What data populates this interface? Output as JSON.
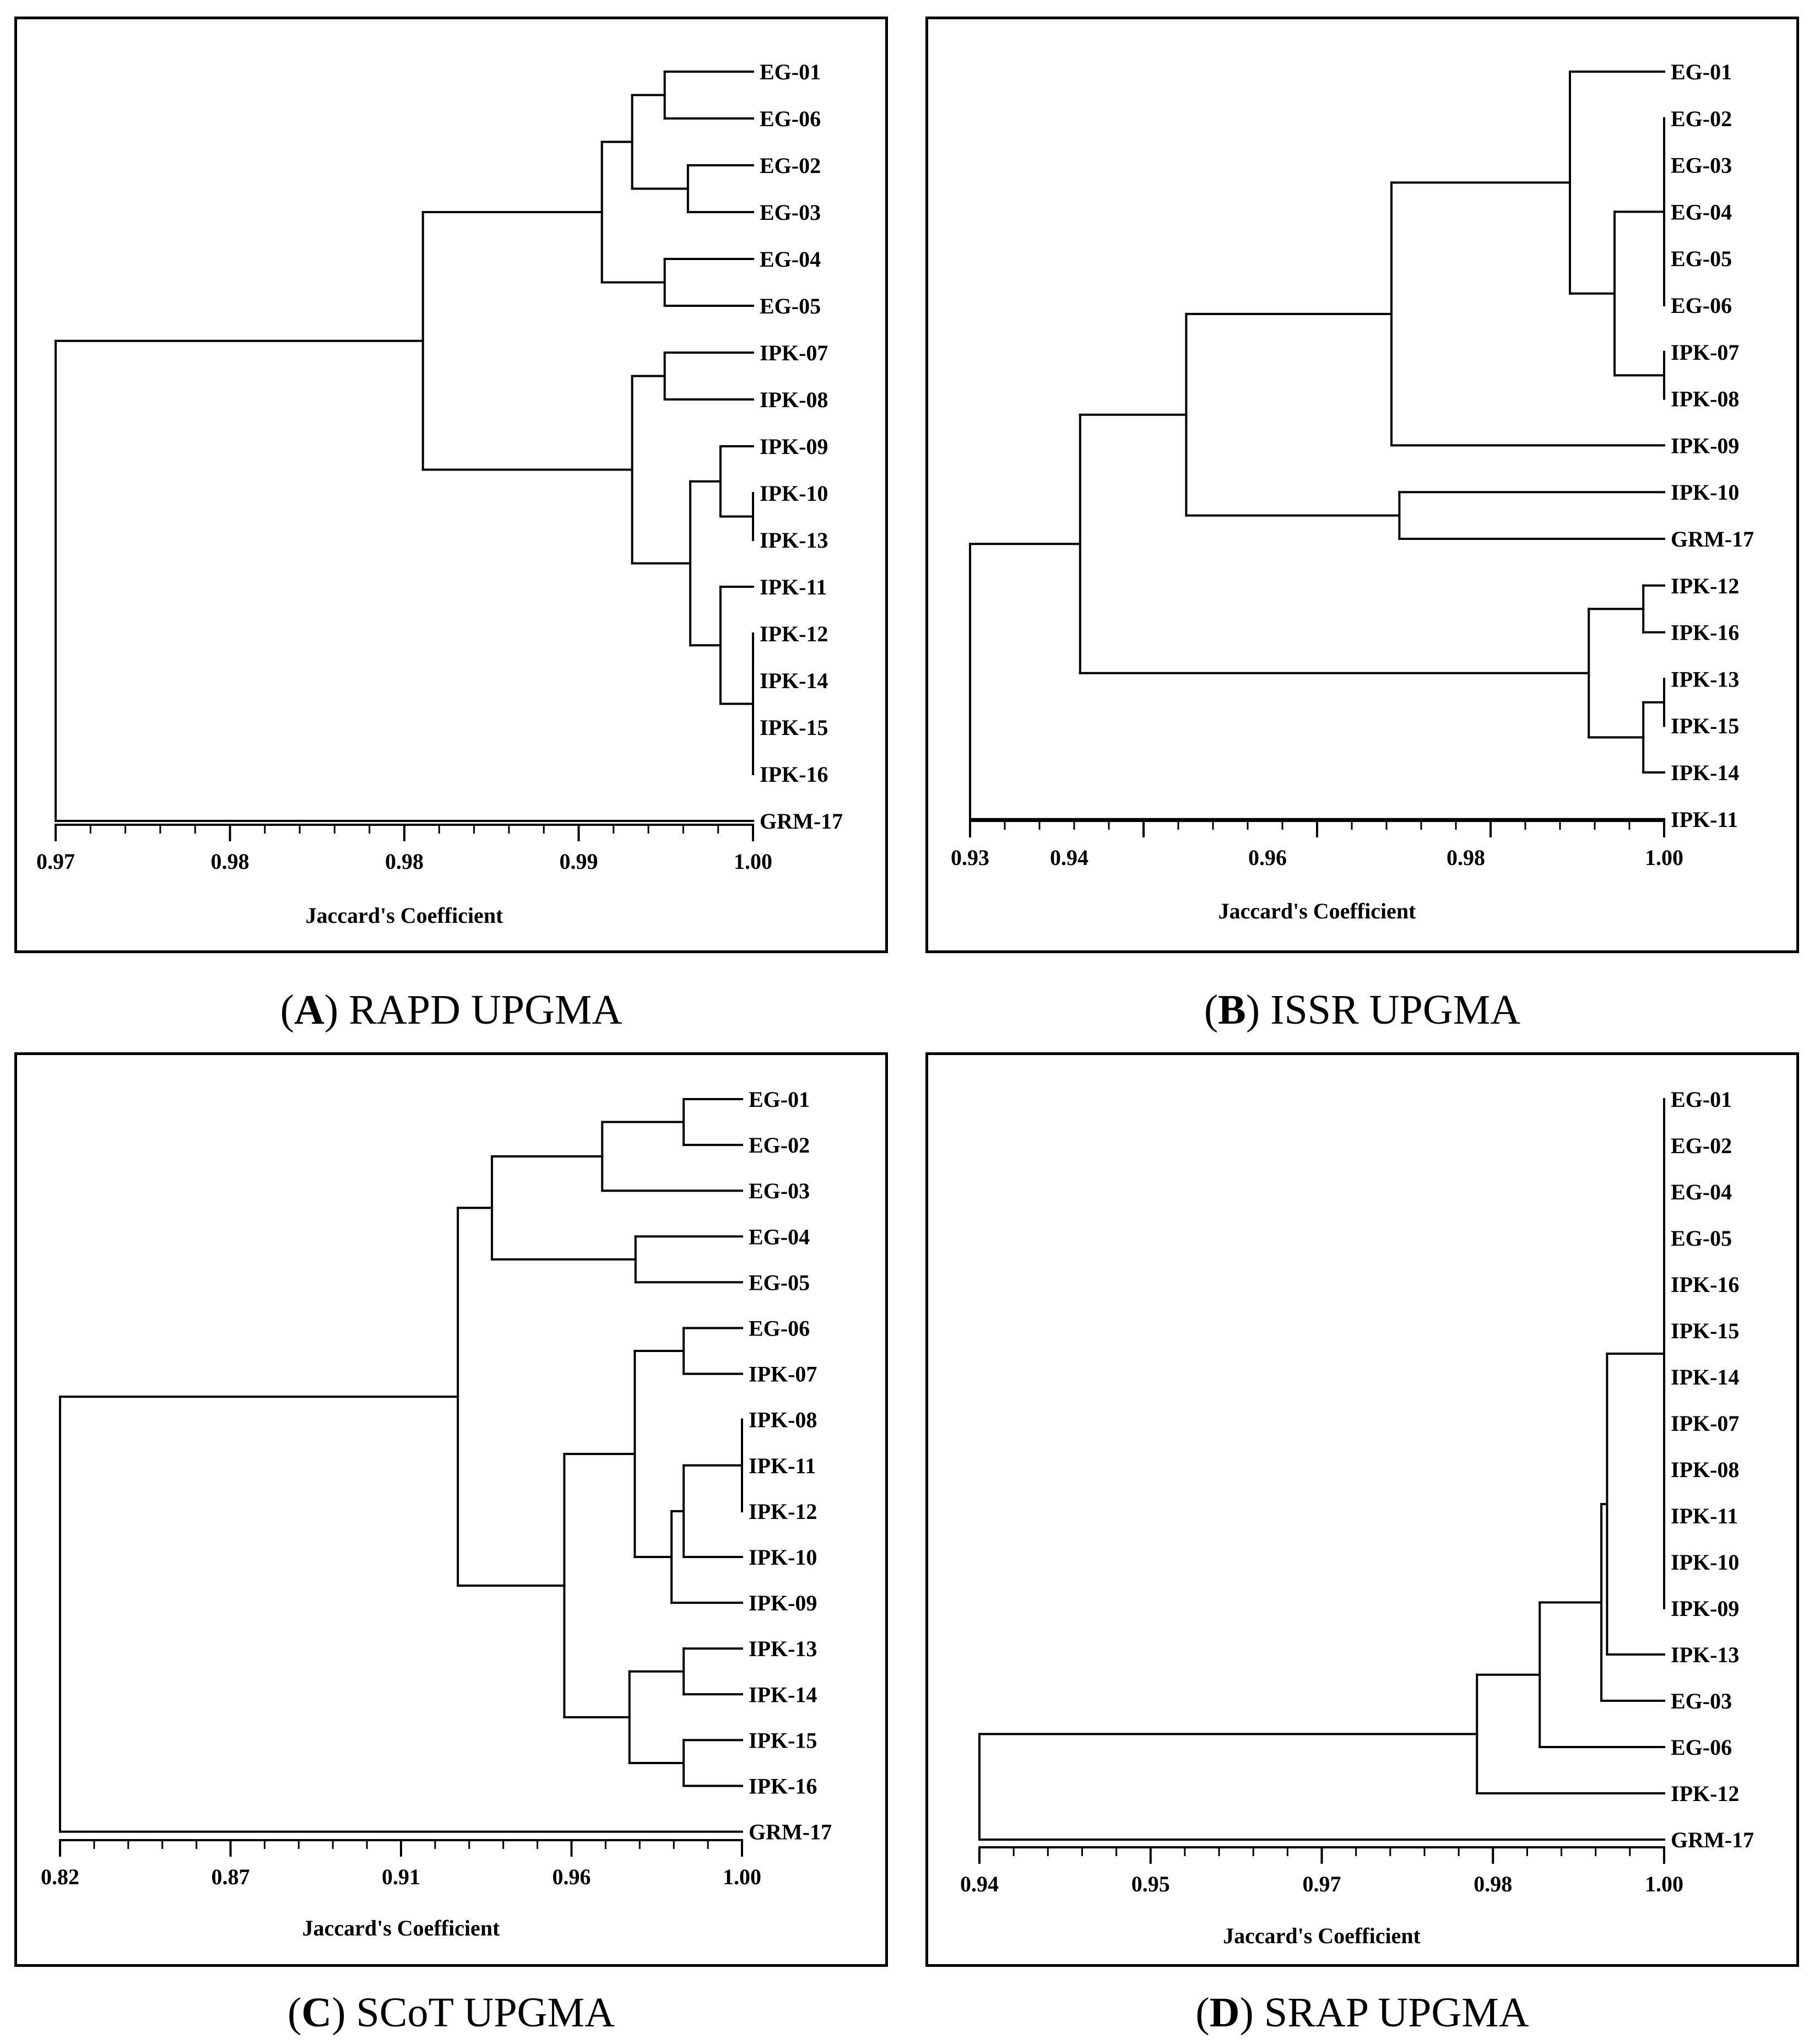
{
  "chart_data": [
    {
      "type": "dendrogram",
      "panel": "A",
      "caption_letter": "A",
      "caption_text": "RAPD UPGMA",
      "xlabel": "Jaccard's Coefficient",
      "xlim": [
        0.97,
        1.0
      ],
      "ticks": [
        {
          "value": 0.97,
          "label": "0.97"
        },
        {
          "value": 0.9775,
          "label": "0.98"
        },
        {
          "value": 0.985,
          "label": "0.98"
        },
        {
          "value": 0.9925,
          "label": "0.99"
        },
        {
          "value": 1.0,
          "label": "1.00"
        }
      ],
      "leaves": [
        "EG-01",
        "EG-06",
        "EG-02",
        "EG-03",
        "EG-04",
        "EG-05",
        "IPK-07",
        "IPK-08",
        "IPK-09",
        "IPK-10",
        "IPK-13",
        "IPK-11",
        "IPK-12",
        "IPK-14",
        "IPK-15",
        "IPK-16",
        "GRM-17"
      ],
      "tree": {
        "h": 0.97,
        "c": [
          {
            "h": 0.9858,
            "c": [
              {
                "h": 0.9935,
                "c": [
                  {
                    "h": 0.9948,
                    "c": [
                      {
                        "h": 0.9962,
                        "c": [
                          {
                            "leaf": "EG-01"
                          },
                          {
                            "leaf": "EG-06"
                          }
                        ]
                      },
                      {
                        "h": 0.9972,
                        "c": [
                          {
                            "leaf": "EG-02"
                          },
                          {
                            "leaf": "EG-03"
                          }
                        ]
                      }
                    ]
                  },
                  {
                    "h": 0.9962,
                    "c": [
                      {
                        "leaf": "EG-04"
                      },
                      {
                        "leaf": "EG-05"
                      }
                    ]
                  }
                ]
              },
              {
                "h": 0.9948,
                "c": [
                  {
                    "h": 0.9962,
                    "c": [
                      {
                        "leaf": "IPK-07"
                      },
                      {
                        "leaf": "IPK-08"
                      }
                    ]
                  },
                  {
                    "h": 0.9973,
                    "c": [
                      {
                        "h": 0.9986,
                        "c": [
                          {
                            "leaf": "IPK-09"
                          },
                          {
                            "h": 1.0,
                            "c": [
                              {
                                "leaf": "IPK-10"
                              },
                              {
                                "leaf": "IPK-13"
                              }
                            ]
                          }
                        ]
                      },
                      {
                        "h": 0.9986,
                        "c": [
                          {
                            "leaf": "IPK-11"
                          },
                          {
                            "h": 1.0,
                            "c": [
                              {
                                "leaf": "IPK-12"
                              },
                              {
                                "leaf": "IPK-14"
                              },
                              {
                                "leaf": "IPK-15"
                              },
                              {
                                "leaf": "IPK-16"
                              }
                            ]
                          }
                        ]
                      }
                    ]
                  }
                ]
              }
            ]
          },
          {
            "leaf": "GRM-17"
          }
        ]
      }
    },
    {
      "type": "dendrogram",
      "panel": "B",
      "caption_letter": "B",
      "caption_text": "ISSR UPGMA",
      "xlabel": "Jaccard's Coefficient",
      "xlim": [
        0.93,
        1.0
      ],
      "ticks": [
        {
          "value": 0.93,
          "label": "0.93"
        },
        {
          "value": 0.94,
          "label": "0.94"
        },
        {
          "value": 0.96,
          "label": "0.96"
        },
        {
          "value": 0.98,
          "label": "0.98"
        },
        {
          "value": 1.0,
          "label": "1.00"
        }
      ],
      "leaves": [
        "EG-01",
        "EG-02",
        "EG-03",
        "EG-04",
        "EG-05",
        "EG-06",
        "IPK-07",
        "IPK-08",
        "IPK-09",
        "IPK-10",
        "GRM-17",
        "IPK-12",
        "IPK-16",
        "IPK-13",
        "IPK-15",
        "IPK-14",
        "IPK-11"
      ],
      "tree": {
        "h": 0.93,
        "c": [
          {
            "h": 0.9411,
            "c": [
              {
                "h": 0.9518,
                "c": [
                  {
                    "h": 0.9725,
                    "c": [
                      {
                        "h": 0.9905,
                        "c": [
                          {
                            "leaf": "EG-01"
                          },
                          {
                            "h": 0.995,
                            "c": [
                              {
                                "h": 1.0,
                                "c": [
                                  {
                                    "leaf": "EG-02"
                                  },
                                  {
                                    "leaf": "EG-03"
                                  },
                                  {
                                    "leaf": "EG-04"
                                  },
                                  {
                                    "leaf": "EG-05"
                                  },
                                  {
                                    "leaf": "EG-06"
                                  }
                                ]
                              },
                              {
                                "h": 1.0,
                                "c": [
                                  {
                                    "leaf": "IPK-07"
                                  },
                                  {
                                    "leaf": "IPK-08"
                                  }
                                ]
                              }
                            ]
                          }
                        ]
                      },
                      {
                        "leaf": "IPK-09"
                      }
                    ]
                  },
                  {
                    "h": 0.9733,
                    "c": [
                      {
                        "leaf": "IPK-10"
                      },
                      {
                        "leaf": "GRM-17"
                      }
                    ]
                  }
                ]
              },
              {
                "h": 0.9924,
                "c": [
                  {
                    "h": 0.9979,
                    "c": [
                      {
                        "leaf": "IPK-12"
                      },
                      {
                        "leaf": "IPK-16"
                      }
                    ]
                  },
                  {
                    "h": 0.9979,
                    "c": [
                      {
                        "h": 1.0,
                        "c": [
                          {
                            "leaf": "IPK-13"
                          },
                          {
                            "leaf": "IPK-15"
                          }
                        ]
                      },
                      {
                        "leaf": "IPK-14"
                      }
                    ]
                  }
                ]
              }
            ]
          },
          {
            "leaf": "IPK-11"
          }
        ]
      }
    },
    {
      "type": "dendrogram",
      "panel": "C",
      "caption_letter": "C",
      "caption_text": "SCoT UPGMA",
      "xlabel": "Jaccard's Coefficient",
      "xlim": [
        0.82,
        1.0
      ],
      "ticks": [
        {
          "value": 0.82,
          "label": "0.82"
        },
        {
          "value": 0.865,
          "label": "0.87"
        },
        {
          "value": 0.91,
          "label": "0.91"
        },
        {
          "value": 0.955,
          "label": "0.96"
        },
        {
          "value": 1.0,
          "label": "1.00"
        }
      ],
      "leaves": [
        "EG-01",
        "EG-02",
        "EG-03",
        "EG-04",
        "EG-05",
        "EG-06",
        "IPK-07",
        "IPK-08",
        "IPK-11",
        "IPK-12",
        "IPK-10",
        "IPK-09",
        "IPK-13",
        "IPK-14",
        "IPK-15",
        "IPK-16",
        "GRM-17"
      ],
      "tree": {
        "h": 0.82,
        "c": [
          {
            "h": 0.925,
            "c": [
              {
                "h": 0.934,
                "c": [
                  {
                    "h": 0.9631,
                    "c": [
                      {
                        "h": 0.9846,
                        "c": [
                          {
                            "leaf": "EG-01"
                          },
                          {
                            "leaf": "EG-02"
                          }
                        ]
                      },
                      {
                        "leaf": "EG-03"
                      }
                    ]
                  },
                  {
                    "h": 0.9719,
                    "c": [
                      {
                        "leaf": "EG-04"
                      },
                      {
                        "leaf": "EG-05"
                      }
                    ]
                  }
                ]
              },
              {
                "h": 0.9531,
                "c": [
                  {
                    "h": 0.9717,
                    "c": [
                      {
                        "h": 0.9846,
                        "c": [
                          {
                            "leaf": "EG-06"
                          },
                          {
                            "leaf": "IPK-07"
                          }
                        ]
                      },
                      {
                        "h": 0.9814,
                        "c": [
                          {
                            "h": 0.9846,
                            "c": [
                              {
                                "h": 1.0,
                                "c": [
                                  {
                                    "leaf": "IPK-08"
                                  },
                                  {
                                    "leaf": "IPK-11"
                                  },
                                  {
                                    "leaf": "IPK-12"
                                  }
                                ]
                              },
                              {
                                "leaf": "IPK-10"
                              }
                            ]
                          },
                          {
                            "leaf": "IPK-09"
                          }
                        ]
                      }
                    ]
                  },
                  {
                    "h": 0.9703,
                    "c": [
                      {
                        "h": 0.9846,
                        "c": [
                          {
                            "leaf": "IPK-13"
                          },
                          {
                            "leaf": "IPK-14"
                          }
                        ]
                      },
                      {
                        "h": 0.9846,
                        "c": [
                          {
                            "leaf": "IPK-15"
                          },
                          {
                            "leaf": "IPK-16"
                          }
                        ]
                      }
                    ]
                  }
                ]
              }
            ]
          },
          {
            "leaf": "GRM-17"
          }
        ]
      }
    },
    {
      "type": "dendrogram",
      "panel": "D",
      "caption_letter": "D",
      "caption_text": "SRAP UPGMA",
      "xlabel": "Jaccard's Coefficient",
      "xlim": [
        0.94,
        1.0
      ],
      "ticks": [
        {
          "value": 0.94,
          "label": "0.94"
        },
        {
          "value": 0.955,
          "label": "0.95"
        },
        {
          "value": 0.97,
          "label": "0.97"
        },
        {
          "value": 0.985,
          "label": "0.98"
        },
        {
          "value": 1.0,
          "label": "1.00"
        }
      ],
      "leaves": [
        "EG-01",
        "EG-02",
        "EG-04",
        "EG-05",
        "IPK-16",
        "IPK-15",
        "IPK-14",
        "IPK-07",
        "IPK-08",
        "IPK-11",
        "IPK-10",
        "IPK-09",
        "IPK-13",
        "EG-03",
        "EG-06",
        "IPK-12",
        "GRM-17"
      ],
      "tree": {
        "h": 0.94,
        "c": [
          {
            "h": 0.9836,
            "c": [
              {
                "h": 0.9891,
                "c": [
                  {
                    "h": 0.9945,
                    "c": [
                      {
                        "h": 0.995,
                        "c": [
                          {
                            "h": 1.0,
                            "c": [
                              {
                                "leaf": "EG-01"
                              },
                              {
                                "leaf": "EG-02"
                              },
                              {
                                "leaf": "EG-04"
                              },
                              {
                                "leaf": "EG-05"
                              },
                              {
                                "leaf": "IPK-16"
                              },
                              {
                                "leaf": "IPK-15"
                              },
                              {
                                "leaf": "IPK-14"
                              },
                              {
                                "leaf": "IPK-07"
                              },
                              {
                                "leaf": "IPK-08"
                              },
                              {
                                "leaf": "IPK-11"
                              },
                              {
                                "leaf": "IPK-10"
                              },
                              {
                                "leaf": "IPK-09"
                              }
                            ]
                          },
                          {
                            "leaf": "IPK-13"
                          }
                        ]
                      },
                      {
                        "leaf": "EG-03"
                      }
                    ]
                  },
                  {
                    "leaf": "EG-06"
                  }
                ]
              },
              {
                "leaf": "IPK-12"
              }
            ]
          },
          {
            "leaf": "GRM-17"
          }
        ]
      }
    }
  ]
}
